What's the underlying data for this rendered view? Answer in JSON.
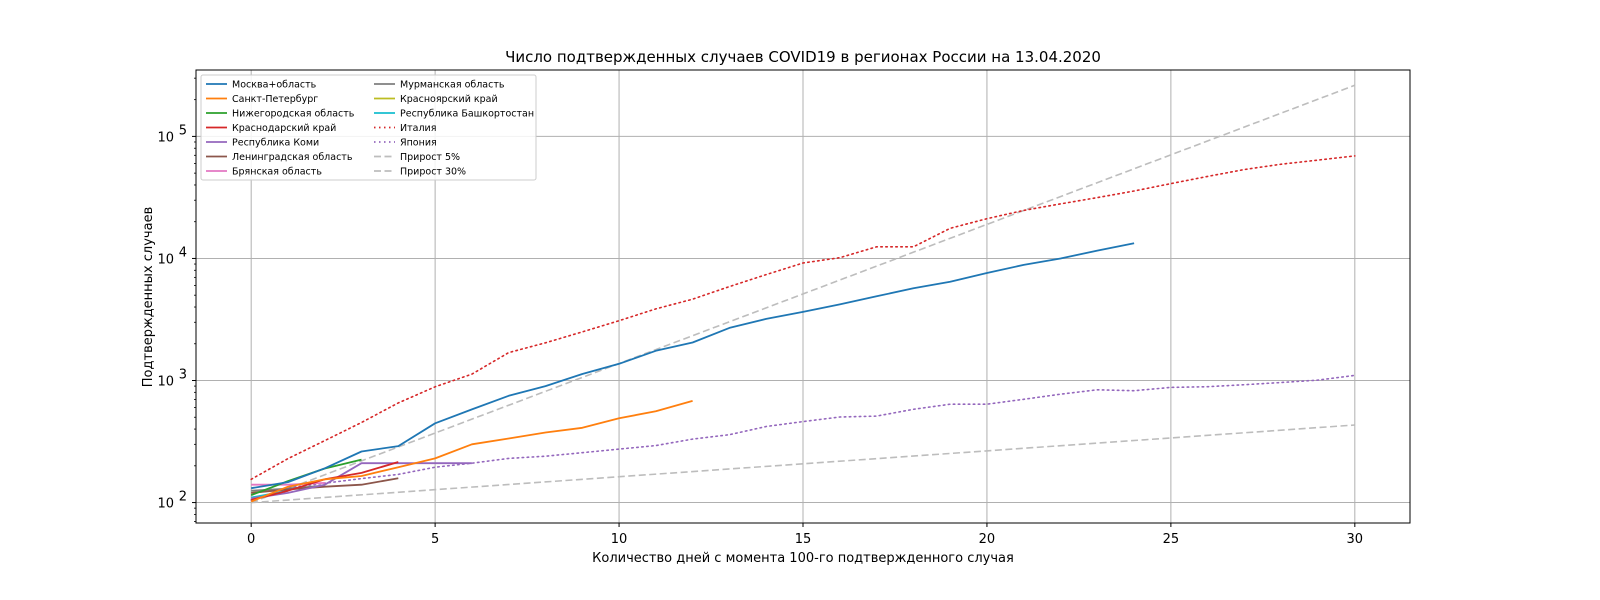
{
  "chart_data": {
    "type": "line",
    "title": "Число подтвержденных случаев COVID19 в регионах России на 13.04.2020",
    "xlabel": "Количество дней с момента 100-го подтвержденного случая",
    "ylabel": "Подтвержденных случаев",
    "xlim": [
      -1.5,
      31.5
    ],
    "ylim": [
      68,
      350000
    ],
    "yscale": "log",
    "grid": true,
    "legend_position": "upper-left",
    "legend_columns": 2,
    "x_ticks": [
      0,
      5,
      10,
      15,
      20,
      25,
      30
    ],
    "x_tick_labels": [
      "0",
      "5",
      "10",
      "15",
      "20",
      "25",
      "30"
    ],
    "y_ticks": [
      100,
      1000,
      10000,
      100000
    ],
    "y_tick_labels": [
      {
        "base": "10",
        "exp": "2"
      },
      {
        "base": "10",
        "exp": "3"
      },
      {
        "base": "10",
        "exp": "4"
      },
      {
        "base": "10",
        "exp": "5"
      }
    ],
    "series": [
      {
        "name": "Москва+область",
        "color": "#1f77b4",
        "style": "solid",
        "x": [
          0,
          1,
          2,
          3,
          4,
          5,
          6,
          7,
          8,
          9,
          10,
          11,
          12,
          13,
          14,
          15,
          16,
          17,
          18,
          19,
          20,
          21,
          22,
          23,
          24
        ],
        "y": [
          131,
          147,
          191,
          262,
          290,
          446,
          580,
          750,
          900,
          1130,
          1370,
          1750,
          2050,
          2700,
          3200,
          3650,
          4200,
          4900,
          5700,
          6450,
          7600,
          8850,
          10000,
          11600,
          13300
        ]
      },
      {
        "name": "Санкт-Петербург",
        "color": "#ff7f0e",
        "style": "solid",
        "x": [
          0,
          1,
          2,
          3,
          4,
          5,
          6,
          7,
          8,
          9,
          10,
          11,
          12
        ],
        "y": [
          102,
          135,
          155,
          165,
          195,
          230,
          300,
          335,
          375,
          410,
          490,
          560,
          680
        ]
      },
      {
        "name": "Нижегородская область",
        "color": "#2ca02c",
        "style": "solid",
        "x": [
          0,
          1,
          2,
          3
        ],
        "y": [
          115,
          150,
          190,
          225
        ]
      },
      {
        "name": "Краснодарский край",
        "color": "#d62728",
        "style": "solid",
        "x": [
          0,
          1,
          2,
          3,
          4
        ],
        "y": [
          105,
          125,
          155,
          175,
          215
        ]
      },
      {
        "name": "Республика Коми",
        "color": "#9467bd",
        "style": "solid",
        "x": [
          0,
          1,
          2,
          3,
          4,
          5,
          6
        ],
        "y": [
          108,
          120,
          140,
          210,
          210,
          210,
          210
        ]
      },
      {
        "name": "Ленинградская область",
        "color": "#8c564b",
        "style": "solid",
        "x": [
          0,
          1,
          2,
          3,
          4
        ],
        "y": [
          120,
          128,
          135,
          140,
          158
        ]
      },
      {
        "name": "Брянская область",
        "color": "#e377c2",
        "style": "solid",
        "x": [
          0,
          1,
          2
        ],
        "y": [
          140,
          140,
          145
        ]
      },
      {
        "name": "Мурманская область",
        "color": "#7f7f7f",
        "style": "solid",
        "x": [
          0,
          1,
          2
        ],
        "y": [
          125,
          130,
          138
        ]
      },
      {
        "name": "Красноярский край",
        "color": "#bcbd22",
        "style": "solid",
        "x": [
          0,
          1
        ],
        "y": [
          120,
          130
        ]
      },
      {
        "name": "Республика Башкортостан",
        "color": "#17becf",
        "style": "solid",
        "x": [
          0,
          1
        ],
        "y": [
          110,
          125
        ]
      },
      {
        "name": "Италия",
        "color": "#d62728",
        "style": "dotted",
        "x": [
          0,
          1,
          2,
          3,
          4,
          5,
          6,
          7,
          8,
          9,
          10,
          11,
          12,
          13,
          14,
          15,
          16,
          17,
          18,
          19,
          20,
          21,
          22,
          23,
          24,
          25,
          26,
          27,
          28,
          29,
          30
        ],
        "y": [
          155,
          229,
          322,
          453,
          655,
          888,
          1128,
          1694,
          2036,
          2502,
          3089,
          3858,
          4636,
          5883,
          7375,
          9172,
          10149,
          12462,
          12462,
          17660,
          21157,
          24747,
          27980,
          31506,
          35713,
          41035,
          47021,
          53578,
          59138,
          63927,
          69176
        ]
      },
      {
        "name": "Япония",
        "color": "#9467bd",
        "style": "dotted",
        "x": [
          0,
          1,
          2,
          3,
          4,
          5,
          6,
          7,
          8,
          9,
          10,
          11,
          12,
          13,
          14,
          15,
          16,
          17,
          18,
          19,
          20,
          21,
          22,
          23,
          24,
          25,
          26,
          27,
          28,
          29,
          30
        ],
        "y": [
          105,
          132,
          144,
          157,
          170,
          195,
          210,
          230,
          240,
          256,
          274,
          293,
          331,
          360,
          420,
          461,
          502,
          511,
          581,
          639,
          639,
          701,
          773,
          839,
          825,
          878,
          889,
          924,
          963,
          1007,
          1101
        ]
      },
      {
        "name": "Прирост 5%",
        "color": "#bdbdbd",
        "style": "dashed",
        "x": [
          0,
          30
        ],
        "y": [
          100,
          432
        ]
      },
      {
        "name": "Прирост 30%",
        "color": "#bdbdbd",
        "style": "dashed",
        "x": [
          0,
          30
        ],
        "y": [
          100,
          262000
        ]
      }
    ]
  }
}
